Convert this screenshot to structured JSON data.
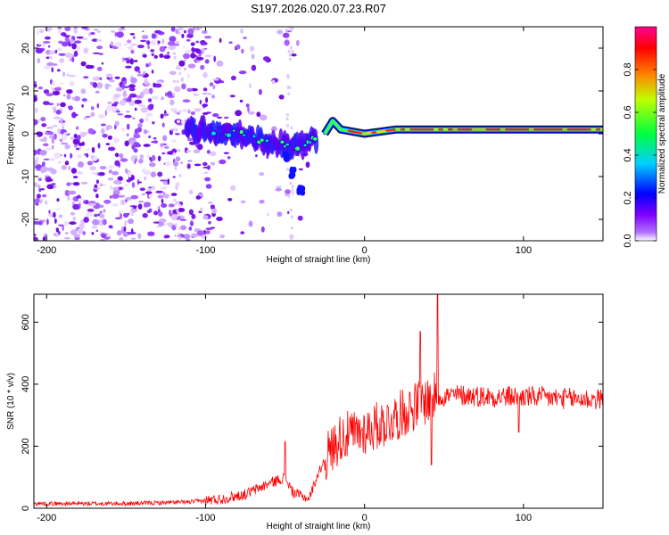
{
  "title": "S197.2026.020.07.23.R07",
  "chart_data": [
    {
      "type": "heatmap",
      "name": "spectrogram",
      "xlabel": "Height of straight line (km)",
      "ylabel": "Frequency (Hz)",
      "xlim": [
        -208,
        150
      ],
      "ylim": [
        -25,
        25
      ],
      "xticks": [
        -200,
        -100,
        0,
        100
      ],
      "yticks": [
        -20,
        -10,
        0,
        10,
        20
      ],
      "colorbar": {
        "label": "Normalized spectral amplitude",
        "range": [
          0,
          1
        ],
        "ticks": [
          "0.0",
          "0.2",
          "0.4",
          "0.6",
          "0.8"
        ],
        "tick_values": [
          0,
          0.2,
          0.4,
          0.6,
          0.8
        ],
        "colormap": [
          "#ffffff",
          "#8000ff",
          "#0000ff",
          "#00ffff",
          "#00ff00",
          "#ffff00",
          "#ff8000",
          "#ff0000",
          "#ff0080"
        ]
      },
      "carrier_track": {
        "description_points_km_hz": [
          [
            -100,
            0
          ],
          [
            -80,
            0
          ],
          [
            -60,
            -2
          ],
          [
            -45,
            -3
          ],
          [
            -35,
            -2
          ],
          [
            -25,
            0
          ],
          [
            -20,
            3
          ],
          [
            -15,
            1
          ],
          [
            0,
            0
          ],
          [
            20,
            1
          ],
          [
            40,
            1
          ],
          [
            100,
            1
          ],
          [
            150,
            1
          ]
        ],
        "noise_region_km": [
          -208,
          -95
        ],
        "descending_tail": [
          [
            -50,
            -5
          ],
          [
            -45,
            -9
          ],
          [
            -40,
            -13
          ]
        ]
      }
    },
    {
      "type": "line",
      "name": "snr",
      "xlabel": "Height of straight line (km)",
      "ylabel": "SNR (10 * v/v)",
      "xlim": [
        -208,
        150
      ],
      "ylim": [
        0,
        690
      ],
      "xticks": [
        -200,
        -100,
        0,
        100
      ],
      "yticks": [
        0,
        200,
        400,
        600
      ],
      "series_color": "#ff0000",
      "envelope_points": [
        {
          "x": -208,
          "y": 15
        },
        {
          "x": -150,
          "y": 15
        },
        {
          "x": -110,
          "y": 20
        },
        {
          "x": -90,
          "y": 30
        },
        {
          "x": -75,
          "y": 45
        },
        {
          "x": -60,
          "y": 80
        },
        {
          "x": -50,
          "y": 100
        },
        {
          "x": -45,
          "y": 50
        },
        {
          "x": -35,
          "y": 30
        },
        {
          "x": -30,
          "y": 100
        },
        {
          "x": -25,
          "y": 160
        },
        {
          "x": -15,
          "y": 230
        },
        {
          "x": -5,
          "y": 240
        },
        {
          "x": 5,
          "y": 260
        },
        {
          "x": 15,
          "y": 280
        },
        {
          "x": 25,
          "y": 310
        },
        {
          "x": 35,
          "y": 340
        },
        {
          "x": 45,
          "y": 360
        },
        {
          "x": 60,
          "y": 365
        },
        {
          "x": 80,
          "y": 360
        },
        {
          "x": 100,
          "y": 360
        },
        {
          "x": 120,
          "y": 355
        },
        {
          "x": 150,
          "y": 350
        }
      ],
      "peaks": [
        {
          "x": -50,
          "y": 215
        },
        {
          "x": 35,
          "y": 570
        },
        {
          "x": 46,
          "y": 690
        },
        {
          "x": 42,
          "y": 140
        },
        {
          "x": 97,
          "y": 245
        }
      ]
    }
  ]
}
